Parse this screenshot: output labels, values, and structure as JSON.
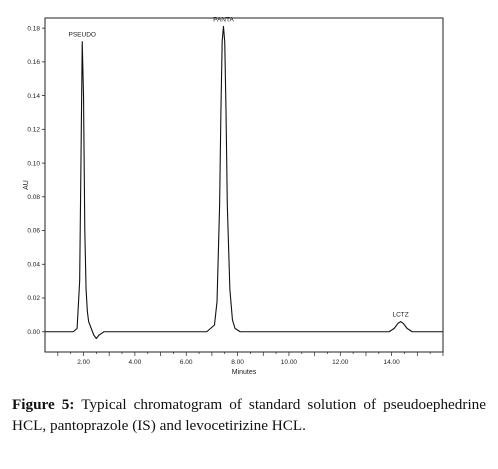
{
  "chart_data": {
    "type": "line",
    "xlabel": "Minutes",
    "ylabel": "AU",
    "xlim": [
      0.5,
      16.0
    ],
    "ylim": [
      -0.012,
      0.186
    ],
    "xticks": [
      {
        "value": 2.0,
        "label": "2.00"
      },
      {
        "value": 4.0,
        "label": "4.00"
      },
      {
        "value": 6.0,
        "label": "6.00"
      },
      {
        "value": 8.0,
        "label": "8.00"
      },
      {
        "value": 10.0,
        "label": "10.00"
      },
      {
        "value": 12.0,
        "label": "12.00"
      },
      {
        "value": 14.0,
        "label": "14.00"
      }
    ],
    "yticks": [
      {
        "value": 0.0,
        "label": "0.00"
      },
      {
        "value": 0.02,
        "label": "0.02"
      },
      {
        "value": 0.04,
        "label": "0.04"
      },
      {
        "value": 0.06,
        "label": "0.06"
      },
      {
        "value": 0.08,
        "label": "0.08"
      },
      {
        "value": 0.1,
        "label": "0.10"
      },
      {
        "value": 0.12,
        "label": "0.12"
      },
      {
        "value": 0.14,
        "label": "0.14"
      },
      {
        "value": 0.16,
        "label": "0.16"
      },
      {
        "value": 0.18,
        "label": "0.18"
      }
    ],
    "peaks": [
      {
        "label": "PSEUDO",
        "retention_time": 1.95,
        "height": 0.172
      },
      {
        "label": "PANTA",
        "retention_time": 7.45,
        "height": 0.181
      },
      {
        "label": "LCTZ",
        "retention_time": 14.35,
        "height": 0.006
      }
    ],
    "series": [
      {
        "x": [
          0.5,
          1.6,
          1.75,
          1.85,
          1.9,
          1.95,
          2.0,
          2.05,
          2.1,
          2.15,
          2.2,
          2.3,
          2.4,
          2.5,
          2.6,
          2.7,
          2.8,
          3.0,
          3.3,
          4.0,
          5.0,
          6.0,
          6.8,
          7.1,
          7.2,
          7.3,
          7.35,
          7.4,
          7.45,
          7.5,
          7.55,
          7.6,
          7.7,
          7.8,
          7.9,
          8.1,
          8.5,
          10.0,
          12.0,
          13.5,
          13.9,
          14.1,
          14.25,
          14.35,
          14.45,
          14.6,
          14.8,
          15.1,
          16.0
        ],
        "y": [
          0.0,
          0.0,
          0.002,
          0.03,
          0.1,
          0.172,
          0.14,
          0.06,
          0.025,
          0.012,
          0.006,
          0.002,
          -0.002,
          -0.004,
          -0.002,
          -0.001,
          0.0,
          0.0,
          0.0,
          0.0,
          0.0,
          0.0,
          0.0,
          0.004,
          0.018,
          0.075,
          0.13,
          0.172,
          0.181,
          0.172,
          0.13,
          0.075,
          0.025,
          0.007,
          0.002,
          0.0,
          0.0,
          0.0,
          0.0,
          0.0,
          0.0,
          0.002,
          0.005,
          0.006,
          0.005,
          0.002,
          0.0,
          0.0,
          0.0
        ]
      }
    ]
  },
  "caption": {
    "label": "Figure 5:",
    "text": "Typical chromatogram of standard solution of pseudoephedrine HCL, pantoprazole (IS) and levocetirizine HCL."
  },
  "colors": {
    "trace": "#111111",
    "axis": "#222222",
    "background": "#ffffff"
  }
}
